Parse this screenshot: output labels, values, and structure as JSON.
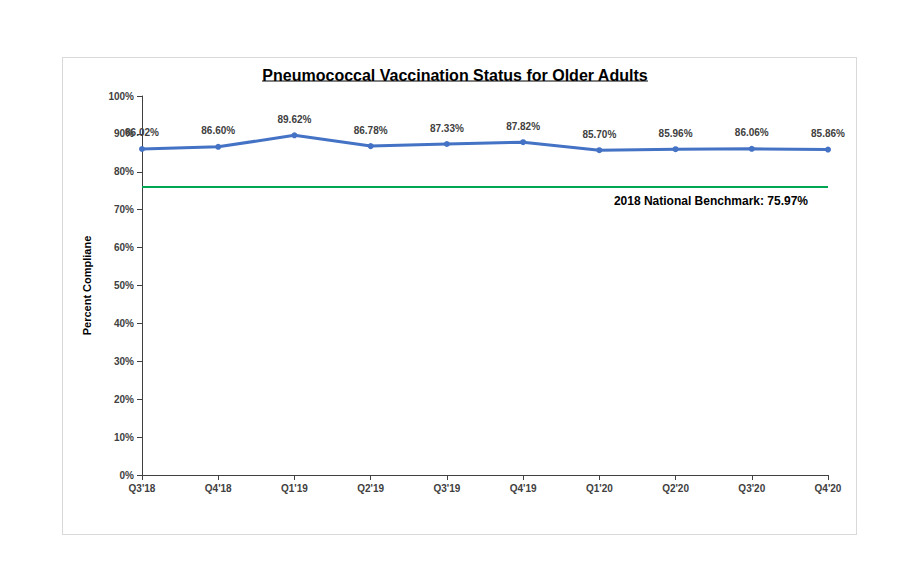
{
  "chart_data": {
    "type": "line",
    "title": "Pneumococcal Vaccination Status for Older Adults",
    "y_label": "Percent Compliane",
    "categories": [
      "Q3'18",
      "Q4'18",
      "Q1'19",
      "Q2'19",
      "Q3'19",
      "Q4'19",
      "Q1'20",
      "Q2'20",
      "Q3'20",
      "Q4'20"
    ],
    "values": [
      86.02,
      86.6,
      89.62,
      86.78,
      87.33,
      87.82,
      85.7,
      85.96,
      86.06,
      85.86
    ],
    "value_labels": [
      "86.02%",
      "86.60%",
      "89.62%",
      "86.78%",
      "87.33%",
      "87.82%",
      "85.70%",
      "85.96%",
      "86.06%",
      "85.86%"
    ],
    "color": "#4472c4",
    "marker": "circle",
    "data_labels": true,
    "grid": false,
    "ylim": [
      0,
      100
    ],
    "yticks": [
      {
        "value": 0,
        "label": "0%"
      },
      {
        "value": 10,
        "label": "10%"
      },
      {
        "value": 20,
        "label": "20%"
      },
      {
        "value": 30,
        "label": "30%"
      },
      {
        "value": 40,
        "label": "40%"
      },
      {
        "value": 50,
        "label": "50%"
      },
      {
        "value": 60,
        "label": "60%"
      },
      {
        "value": 70,
        "label": "70%"
      },
      {
        "value": 80,
        "label": "80%"
      },
      {
        "value": 90,
        "label": "90%"
      },
      {
        "value": 100,
        "label": "100%"
      }
    ],
    "benchmark": {
      "value": 75.97,
      "label": "2018 National Benchmark: 75.97%",
      "color": "#00a651"
    }
  }
}
